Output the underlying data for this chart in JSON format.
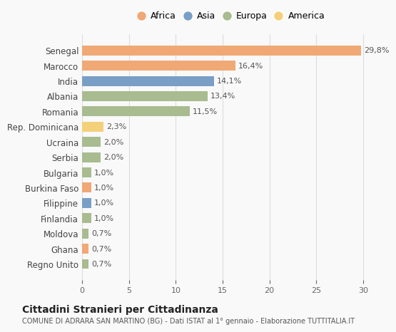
{
  "countries": [
    "Senegal",
    "Marocco",
    "India",
    "Albania",
    "Romania",
    "Rep. Dominicana",
    "Ucraina",
    "Serbia",
    "Bulgaria",
    "Burkina Faso",
    "Filippine",
    "Finlandia",
    "Moldova",
    "Ghana",
    "Regno Unito"
  ],
  "values": [
    29.8,
    16.4,
    14.1,
    13.4,
    11.5,
    2.3,
    2.0,
    2.0,
    1.0,
    1.0,
    1.0,
    1.0,
    0.7,
    0.7,
    0.7
  ],
  "labels": [
    "29,8%",
    "16,4%",
    "14,1%",
    "13,4%",
    "11,5%",
    "2,3%",
    "2,0%",
    "2,0%",
    "1,0%",
    "1,0%",
    "1,0%",
    "1,0%",
    "0,7%",
    "0,7%",
    "0,7%"
  ],
  "continents": [
    "Africa",
    "Africa",
    "Asia",
    "Europa",
    "Europa",
    "America",
    "Europa",
    "Europa",
    "Europa",
    "Africa",
    "Asia",
    "Europa",
    "Europa",
    "Africa",
    "Europa"
  ],
  "colors": {
    "Africa": "#F0A875",
    "Asia": "#7A9FC7",
    "Europa": "#A8BC8F",
    "America": "#F5D07A"
  },
  "legend_order": [
    "Africa",
    "Asia",
    "Europa",
    "America"
  ],
  "title": "Cittadini Stranieri per Cittadinanza",
  "subtitle": "COMUNE DI ADRARA SAN MARTINO (BG) - Dati ISTAT al 1° gennaio - Elaborazione TUTTITALIA.IT",
  "xlim": [
    0,
    32
  ],
  "xticks": [
    0,
    5,
    10,
    15,
    20,
    25,
    30
  ],
  "bg_color": "#f9f9f9",
  "grid_color": "#dddddd",
  "bar_height": 0.65
}
